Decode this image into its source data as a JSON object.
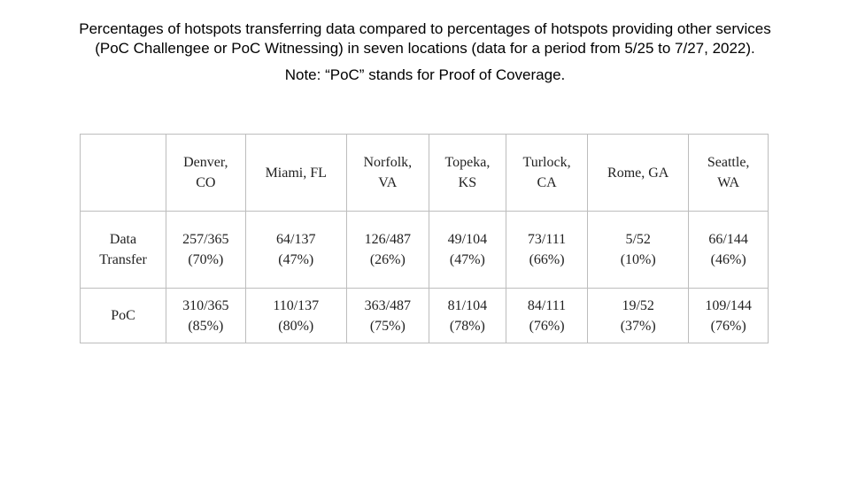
{
  "title": {
    "line1": "Percentages of hotspots transferring data compared to percentages of hotspots providing other services",
    "line2": "(PoC Challengee or PoC Witnessing) in seven locations (data for a period from 5/25 to 7/27, 2022)."
  },
  "note": "Note: “PoC” stands for Proof of Coverage.",
  "table": {
    "columns": [
      {
        "line1": "Denver,",
        "line2": "CO"
      },
      {
        "line1": "Miami, FL",
        "line2": ""
      },
      {
        "line1": "Norfolk,",
        "line2": "VA"
      },
      {
        "line1": "Topeka,",
        "line2": "KS"
      },
      {
        "line1": "Turlock,",
        "line2": "CA"
      },
      {
        "line1": "Rome, GA",
        "line2": ""
      },
      {
        "line1": "Seattle,",
        "line2": "WA"
      }
    ],
    "rows": [
      {
        "label": {
          "line1": "Data",
          "line2": "Transfer"
        },
        "cells": [
          {
            "count": "257/365",
            "pct": "(70%)"
          },
          {
            "count": "64/137",
            "pct": "(47%)"
          },
          {
            "count": "126/487",
            "pct": "(26%)"
          },
          {
            "count": "49/104",
            "pct": "(47%)"
          },
          {
            "count": "73/111",
            "pct": "(66%)"
          },
          {
            "count": "5/52",
            "pct": "(10%)"
          },
          {
            "count": "66/144",
            "pct": "(46%)"
          }
        ]
      },
      {
        "label": {
          "line1": "PoC",
          "line2": ""
        },
        "cells": [
          {
            "count": "310/365",
            "pct": "(85%)"
          },
          {
            "count": "110/137",
            "pct": "(80%)"
          },
          {
            "count": "363/487",
            "pct": "(75%)"
          },
          {
            "count": "81/104",
            "pct": "(78%)"
          },
          {
            "count": "84/111",
            "pct": "(76%)"
          },
          {
            "count": "19/52",
            "pct": "(37%)"
          },
          {
            "count": "109/144",
            "pct": "(76%)"
          }
        ]
      }
    ]
  }
}
